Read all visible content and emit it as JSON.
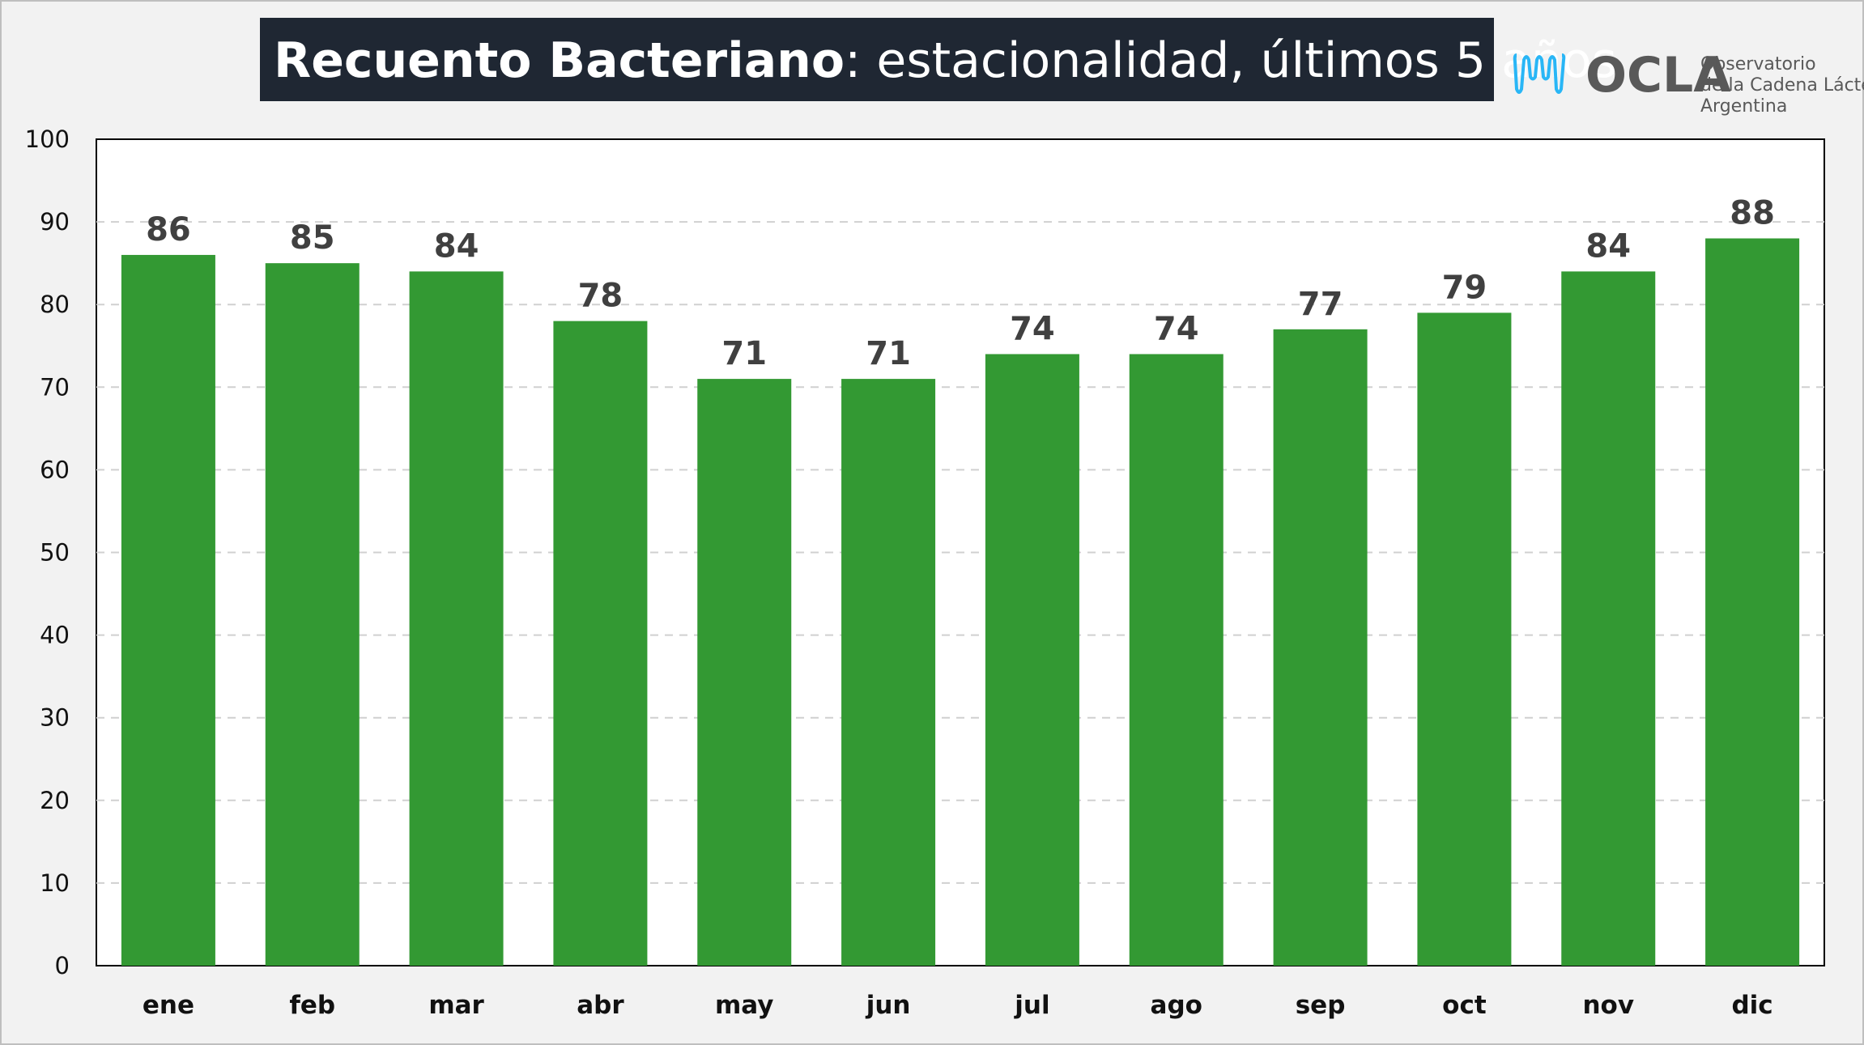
{
  "chart_data": {
    "type": "bar",
    "title_bold": "Recuento Bacteriano",
    "title_rest": ": estacionalidad, últimos 5 años",
    "categories": [
      "ene",
      "feb",
      "mar",
      "abr",
      "may",
      "jun",
      "jul",
      "ago",
      "sep",
      "oct",
      "nov",
      "dic"
    ],
    "values": [
      86,
      85,
      84,
      78,
      71,
      71,
      74,
      74,
      77,
      79,
      84,
      88
    ],
    "ylim": [
      0,
      100
    ],
    "yticks": [
      0,
      10,
      20,
      30,
      40,
      50,
      60,
      70,
      80,
      90,
      100
    ],
    "grid": "horizontal dashed",
    "bar_color": "#339933",
    "title_bg": "#1f2733"
  },
  "logo": {
    "name": "OCLA",
    "line1": "Observatorio",
    "line2": "de la Cadena Láctea",
    "line3": "Argentina",
    "wave_color": "#29b6f6",
    "text_color": "#595959"
  }
}
